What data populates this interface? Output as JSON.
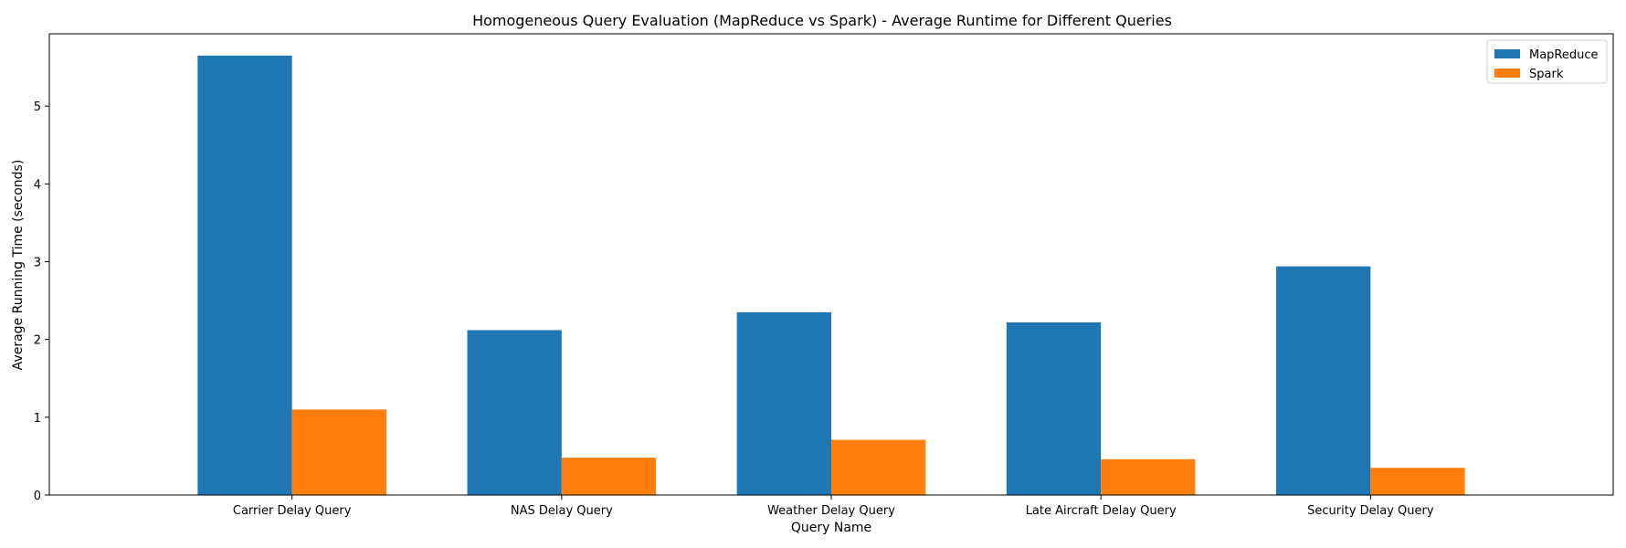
{
  "chart_data": {
    "type": "bar",
    "title": "Homogeneous Query Evaluation (MapReduce vs Spark) - Average Runtime for Different Queries",
    "xlabel": "Query Name",
    "ylabel": "Average Running Time (seconds)",
    "categories": [
      "Carrier Delay Query",
      "NAS Delay Query",
      "Weather Delay Query",
      "Late Aircraft Delay Query",
      "Security Delay Query"
    ],
    "series": [
      {
        "name": "MapReduce",
        "color": "#1f77b4",
        "values": [
          5.65,
          2.12,
          2.35,
          2.22,
          2.94
        ]
      },
      {
        "name": "Spark",
        "color": "#ff7f0e",
        "values": [
          1.1,
          0.48,
          0.71,
          0.46,
          0.35
        ]
      }
    ],
    "ylim": [
      0,
      5.93
    ],
    "yticks": [
      0,
      1,
      2,
      3,
      4,
      5
    ],
    "grid": false,
    "legend_position": "top-right"
  }
}
